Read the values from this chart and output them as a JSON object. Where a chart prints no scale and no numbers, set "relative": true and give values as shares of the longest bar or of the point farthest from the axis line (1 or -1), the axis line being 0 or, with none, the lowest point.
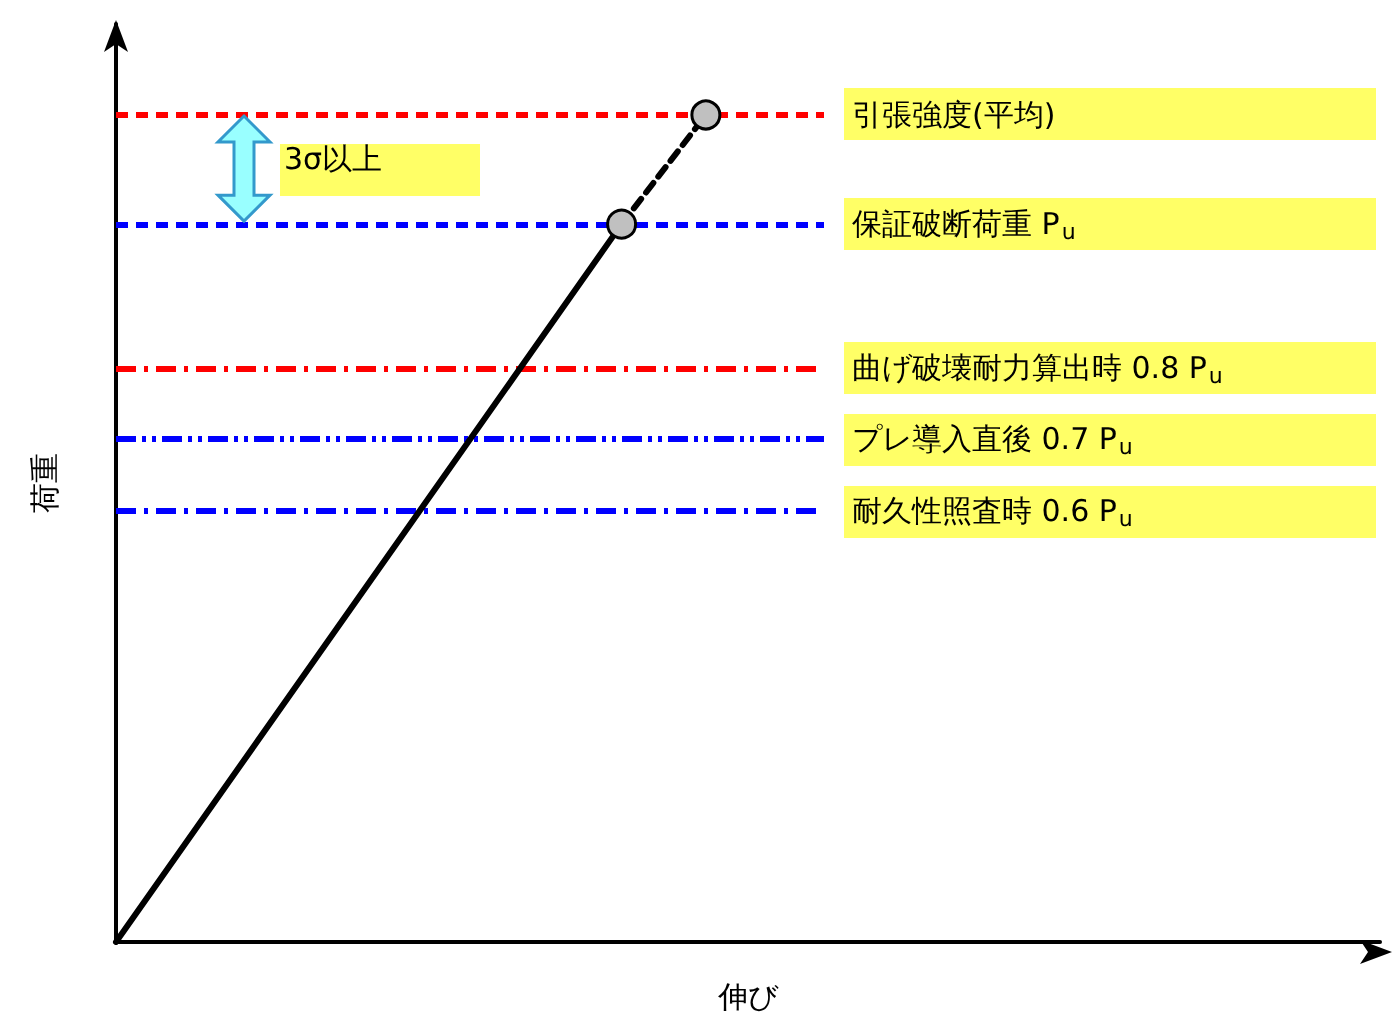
{
  "chart_data": {
    "type": "line",
    "relative": true,
    "xlabel": "伸び",
    "ylabel": "荷重",
    "ylim": [
      0,
      1.11
    ],
    "grid": false,
    "categories": [
      null,
      null,
      null,
      null,
      null,
      null,
      null,
      null,
      null,
      null,
      null,
      null,
      null,
      null,
      null,
      null
    ],
    "series": [
      {
        "color": "#000000",
        "values": [
          0,
          null,
          null,
          null,
          null,
          null,
          0.868,
          null,
          null,
          null,
          null,
          null,
          null,
          null,
          null,
          null
        ],
        "line_style": "solid",
        "marker": "none"
      },
      {
        "color": "#000000",
        "values": [
          null,
          null,
          null,
          null,
          null,
          null,
          0.868,
          1,
          null,
          null,
          null,
          null,
          null,
          null,
          null,
          null
        ],
        "line_style": "dashed",
        "marker": "circle"
      }
    ],
    "ref_lines": [
      {
        "axis": "y",
        "value": 1,
        "label": "引張強度(平均)",
        "color": "#ff0000",
        "line_style": "dashed"
      },
      {
        "axis": "y",
        "value": 0.868,
        "label": "保証破断荷重 P$_{u}$",
        "color": "#0000ff",
        "line_style": "dashed"
      },
      {
        "axis": "y",
        "value": 0.694,
        "label": "曲げ破壊耐力算出時 0.8 P$_{u}$",
        "color": "#ff0000",
        "line_style": "dashdot"
      },
      {
        "axis": "y",
        "value": 0.608,
        "label": "プレ導入直後 0.7 P$_{u}$",
        "color": "#0000ff",
        "line_style": "dashdotdot"
      },
      {
        "axis": "y",
        "value": 0.521,
        "label": "耐久性照査時 0.6 P$_{u}$",
        "color": "#0000ff",
        "line_style": "dashdot"
      }
    ],
    "annotations": [
      "3σ以上"
    ]
  }
}
